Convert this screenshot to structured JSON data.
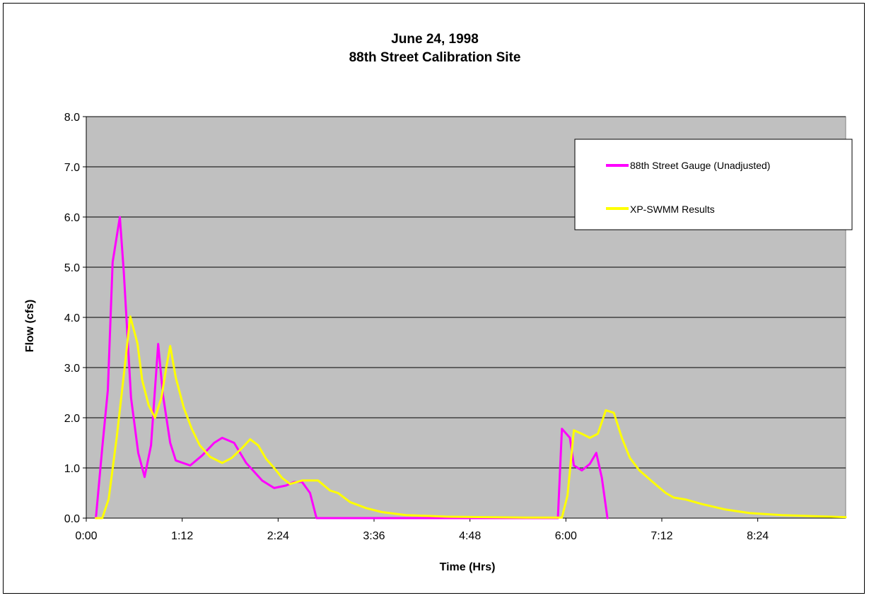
{
  "chart_data": {
    "type": "line",
    "title_lines": [
      "June 24, 1998",
      "88th Street Calibration Site"
    ],
    "xlabel": "Time (Hrs)",
    "ylabel": "Flow (cfs)",
    "xlim": [
      0,
      9.5
    ],
    "ylim": [
      0,
      8
    ],
    "y_ticks": [
      0,
      1,
      2,
      3,
      4,
      5,
      6,
      7,
      8
    ],
    "y_tick_labels": [
      "0.0",
      "1.0",
      "2.0",
      "3.0",
      "4.0",
      "5.0",
      "6.0",
      "7.0",
      "8.0"
    ],
    "x_ticks": [
      0,
      1.2,
      2.4,
      3.6,
      4.8,
      6.0,
      7.2,
      8.4
    ],
    "x_tick_labels": [
      "0:00",
      "1:12",
      "2:24",
      "3:36",
      "4:48",
      "6:00",
      "7:12",
      "8:24"
    ],
    "grid": true,
    "legend_position": "top-right",
    "colors": {
      "plot_bg": "#c0c0c0",
      "gauge": "#ff00ff",
      "swmm": "#ffff00"
    },
    "series": [
      {
        "name": "88th Street Gauge (Unadjusted)",
        "color": "#ff00ff",
        "points": [
          [
            0.12,
            0.0
          ],
          [
            0.2,
            1.4
          ],
          [
            0.27,
            2.55
          ],
          [
            0.33,
            5.1
          ],
          [
            0.42,
            6.0
          ],
          [
            0.47,
            4.9
          ],
          [
            0.56,
            2.4
          ],
          [
            0.65,
            1.3
          ],
          [
            0.73,
            0.82
          ],
          [
            0.81,
            1.45
          ],
          [
            0.9,
            3.47
          ],
          [
            0.96,
            2.45
          ],
          [
            1.05,
            1.5
          ],
          [
            1.12,
            1.15
          ],
          [
            1.3,
            1.05
          ],
          [
            1.45,
            1.25
          ],
          [
            1.6,
            1.5
          ],
          [
            1.7,
            1.6
          ],
          [
            1.85,
            1.5
          ],
          [
            2.0,
            1.1
          ],
          [
            2.2,
            0.75
          ],
          [
            2.35,
            0.6
          ],
          [
            2.5,
            0.65
          ],
          [
            2.6,
            0.72
          ],
          [
            2.7,
            0.72
          ],
          [
            2.8,
            0.5
          ],
          [
            2.88,
            0.0
          ],
          [
            5.9,
            0.0
          ],
          [
            5.95,
            1.78
          ],
          [
            6.05,
            1.6
          ],
          [
            6.1,
            1.05
          ],
          [
            6.2,
            0.95
          ],
          [
            6.3,
            1.08
          ],
          [
            6.38,
            1.3
          ],
          [
            6.45,
            0.8
          ],
          [
            6.52,
            0.0
          ]
        ]
      },
      {
        "name": "XP-SWMM Results",
        "color": "#ffff00",
        "points": [
          [
            0.12,
            0.0
          ],
          [
            0.2,
            0.0
          ],
          [
            0.28,
            0.38
          ],
          [
            0.38,
            1.6
          ],
          [
            0.48,
            3.0
          ],
          [
            0.55,
            4.02
          ],
          [
            0.64,
            3.48
          ],
          [
            0.7,
            2.75
          ],
          [
            0.78,
            2.25
          ],
          [
            0.86,
            2.0
          ],
          [
            0.94,
            2.4
          ],
          [
            1.0,
            3.0
          ],
          [
            1.05,
            3.43
          ],
          [
            1.12,
            2.8
          ],
          [
            1.22,
            2.2
          ],
          [
            1.32,
            1.78
          ],
          [
            1.42,
            1.45
          ],
          [
            1.55,
            1.22
          ],
          [
            1.7,
            1.1
          ],
          [
            1.82,
            1.2
          ],
          [
            1.95,
            1.4
          ],
          [
            2.05,
            1.57
          ],
          [
            2.15,
            1.45
          ],
          [
            2.25,
            1.18
          ],
          [
            2.35,
            1.0
          ],
          [
            2.45,
            0.8
          ],
          [
            2.55,
            0.68
          ],
          [
            2.7,
            0.75
          ],
          [
            2.9,
            0.75
          ],
          [
            3.05,
            0.55
          ],
          [
            3.15,
            0.5
          ],
          [
            3.3,
            0.32
          ],
          [
            3.5,
            0.2
          ],
          [
            3.7,
            0.12
          ],
          [
            4.0,
            0.06
          ],
          [
            4.5,
            0.03
          ],
          [
            5.0,
            0.02
          ],
          [
            5.5,
            0.01
          ],
          [
            5.95,
            0.01
          ],
          [
            6.02,
            0.45
          ],
          [
            6.1,
            1.75
          ],
          [
            6.2,
            1.68
          ],
          [
            6.3,
            1.6
          ],
          [
            6.4,
            1.68
          ],
          [
            6.5,
            2.15
          ],
          [
            6.6,
            2.1
          ],
          [
            6.7,
            1.6
          ],
          [
            6.8,
            1.2
          ],
          [
            6.92,
            0.95
          ],
          [
            7.1,
            0.7
          ],
          [
            7.25,
            0.5
          ],
          [
            7.35,
            0.41
          ],
          [
            7.5,
            0.37
          ],
          [
            7.7,
            0.28
          ],
          [
            8.0,
            0.17
          ],
          [
            8.3,
            0.1
          ],
          [
            8.7,
            0.06
          ],
          [
            9.1,
            0.04
          ],
          [
            9.5,
            0.02
          ]
        ]
      }
    ]
  }
}
